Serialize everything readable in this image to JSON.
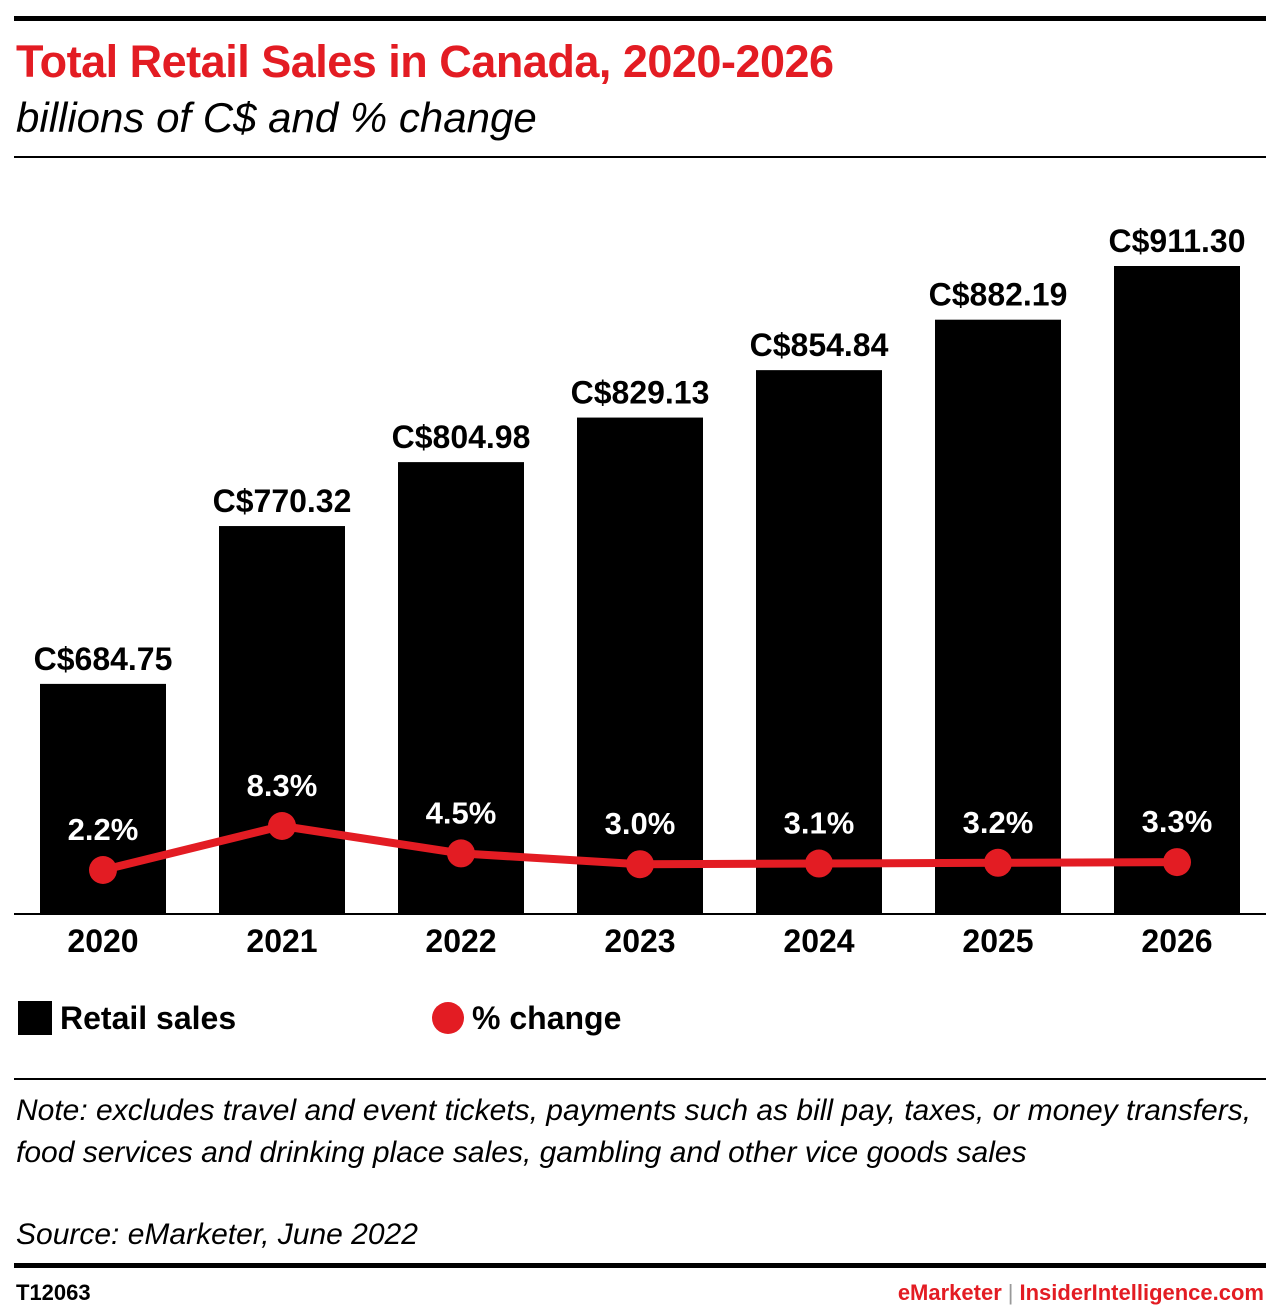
{
  "header": {
    "title": "Total Retail Sales in Canada, 2020-2026",
    "subtitle": "billions of C$ and % change"
  },
  "colors": {
    "bar": "#000000",
    "line": "#e31c23",
    "title": "#e31c23"
  },
  "chart_data": {
    "type": "bar",
    "categories": [
      "2020",
      "2021",
      "2022",
      "2023",
      "2024",
      "2025",
      "2026"
    ],
    "series": [
      {
        "name": "Retail sales",
        "type": "bar",
        "values": [
          684.75,
          770.32,
          804.98,
          829.13,
          854.84,
          882.19,
          911.3
        ],
        "labels": [
          "C$684.75",
          "C$770.32",
          "C$804.98",
          "C$829.13",
          "C$854.84",
          "C$882.19",
          "C$911.30"
        ]
      },
      {
        "name": "% change",
        "type": "line",
        "values": [
          2.2,
          8.3,
          4.5,
          3.0,
          3.1,
          3.2,
          3.3
        ],
        "labels": [
          "2.2%",
          "8.3%",
          "4.5%",
          "3.0%",
          "3.1%",
          "3.2%",
          "3.3%"
        ]
      }
    ],
    "ylim": [
      0,
      950
    ],
    "grid": false,
    "legend_position": "bottom-left"
  },
  "legend": {
    "bar_label": "Retail sales",
    "line_label": "% change"
  },
  "footnote": {
    "note": "Note: excludes travel and event tickets, payments such as bill pay, taxes, or money transfers, food services and drinking place sales, gambling and other vice goods sales",
    "source": "Source: eMarketer, June 2022"
  },
  "footer": {
    "chart_id": "T12063",
    "brand_a": "eMarketer",
    "separator": "|",
    "brand_b": "InsiderIntelligence.com"
  }
}
